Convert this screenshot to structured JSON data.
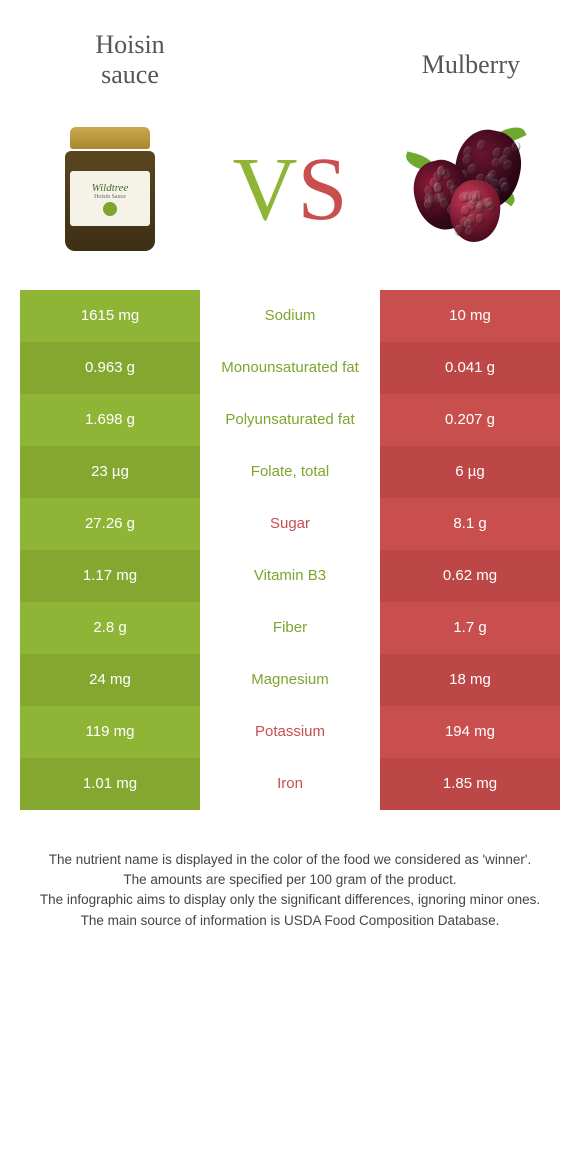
{
  "header": {
    "left_title": "Hoisin\nsauce",
    "right_title": "Mulberry",
    "vs_v": "V",
    "vs_s": "S"
  },
  "colors": {
    "left_green": "#8fb536",
    "left_green_alt": "#84a82f",
    "right_red": "#c94f4f",
    "right_red_alt": "#bd4646",
    "mid_green_text": "#7fa52e",
    "mid_red_text": "#c94f4f",
    "row_background": "#ffffff"
  },
  "table": {
    "rows": [
      {
        "left": "1615 mg",
        "label": "Sodium",
        "right": "10 mg",
        "winner": "left"
      },
      {
        "left": "0.963 g",
        "label": "Monounsaturated fat",
        "right": "0.041 g",
        "winner": "left"
      },
      {
        "left": "1.698 g",
        "label": "Polyunsaturated fat",
        "right": "0.207 g",
        "winner": "left"
      },
      {
        "left": "23 µg",
        "label": "Folate, total",
        "right": "6 µg",
        "winner": "left"
      },
      {
        "left": "27.26 g",
        "label": "Sugar",
        "right": "8.1 g",
        "winner": "right"
      },
      {
        "left": "1.17 mg",
        "label": "Vitamin B3",
        "right": "0.62 mg",
        "winner": "left"
      },
      {
        "left": "2.8 g",
        "label": "Fiber",
        "right": "1.7 g",
        "winner": "left"
      },
      {
        "left": "24 mg",
        "label": "Magnesium",
        "right": "18 mg",
        "winner": "left"
      },
      {
        "left": "119 mg",
        "label": "Potassium",
        "right": "194 mg",
        "winner": "right"
      },
      {
        "left": "1.01 mg",
        "label": "Iron",
        "right": "1.85 mg",
        "winner": "right"
      }
    ]
  },
  "footer": {
    "line1": "The nutrient name is displayed in the color of the food we considered as 'winner'.",
    "line2": "The amounts are specified per 100 gram of the product.",
    "line3": "The infographic aims to display only the significant differences, ignoring minor ones.",
    "line4": "The main source of information is USDA Food Composition Database."
  },
  "jar": {
    "brand": "Wildtree",
    "sub": "Hoisin Sauce"
  }
}
